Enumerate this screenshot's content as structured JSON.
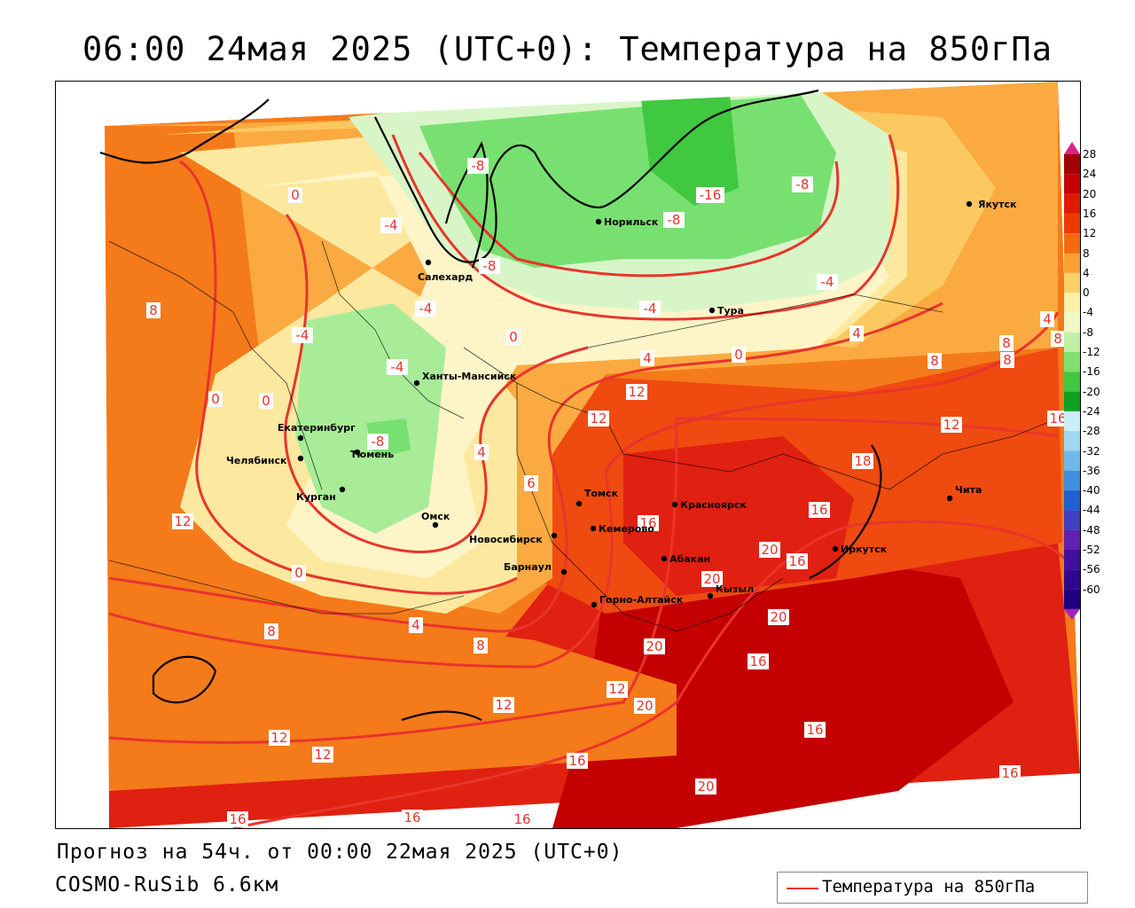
{
  "title": "06:00 24мая 2025 (UTC+0): Температура на 850гПа",
  "footer": {
    "forecast": "Прогноз на 54ч. от 00:00 22мая 2025 (UTC+0)",
    "model": "COSMO-RuSib 6.6км"
  },
  "legend": {
    "label": "Температура на 850гПа",
    "line_color": "#e8342c"
  },
  "colorbar": {
    "ticks": [
      "28",
      "24",
      "20",
      "16",
      "12",
      "8",
      "4",
      "0",
      "-4",
      "-8",
      "-12",
      "-16",
      "-20",
      "-24",
      "-28",
      "-32",
      "-36",
      "-40",
      "-44",
      "-48",
      "-52",
      "-56",
      "-60"
    ],
    "colors": [
      "#a00000",
      "#c40000",
      "#e01a00",
      "#ee3a00",
      "#f56a10",
      "#f9a030",
      "#fcd068",
      "#fdf0a8",
      "#f0f8c8",
      "#c0f0a8",
      "#80e070",
      "#40c840",
      "#10a020",
      "#c8eef8",
      "#a0d8f0",
      "#70b8e8",
      "#4090e0",
      "#2060d0",
      "#4040c0",
      "#6020b0",
      "#4010a0",
      "#300890",
      "#200080"
    ],
    "top_color": "#e0208a",
    "bottom_color": "#a020c0"
  },
  "cities": [
    {
      "name": "Якутск"
    },
    {
      "name": "Норильск"
    },
    {
      "name": "Салехард"
    },
    {
      "name": "Тура"
    },
    {
      "name": "Ханты-Мансийск"
    },
    {
      "name": "Екатеринбург"
    },
    {
      "name": "Тюмень"
    },
    {
      "name": "Челябинск"
    },
    {
      "name": "Курган"
    },
    {
      "name": "Омск"
    },
    {
      "name": "Новосибирск"
    },
    {
      "name": "Томск"
    },
    {
      "name": "Кемерово"
    },
    {
      "name": "Красноярск"
    },
    {
      "name": "Барнаул"
    },
    {
      "name": "Абакан"
    },
    {
      "name": "Горно-Алтайск"
    },
    {
      "name": "Кызыл"
    },
    {
      "name": "Иркутск"
    },
    {
      "name": "Чита"
    }
  ],
  "isolines": [
    "-8",
    "-16",
    "-8",
    "-8",
    "-4",
    "-8",
    "-4",
    "-4",
    "0",
    "-4",
    "-4",
    "-4",
    "0",
    "-8",
    "0",
    "4",
    "0",
    "8",
    "4",
    "8",
    "8",
    "12",
    "12",
    "12",
    "4",
    "6",
    "18",
    "16",
    "16",
    "20",
    "20",
    "16",
    "20",
    "20",
    "16",
    "12",
    "20",
    "12",
    "12",
    "16",
    "8",
    "4",
    "8",
    "0",
    "0",
    "12",
    "12",
    "16",
    "20",
    "16",
    "16",
    "16",
    "16",
    "16",
    "12",
    "4",
    "8",
    "8"
  ],
  "colors": {
    "isoline": "#e8342c",
    "deep_red": "#c40000",
    "red": "#e02010",
    "orange_red": "#ef4a10",
    "orange": "#f57a1a",
    "light_orange": "#faaa40",
    "yellow_orange": "#fcc860",
    "pale_yellow": "#fde8a0",
    "cream": "#fdf5c8",
    "pale_green": "#d8f5c8",
    "light_green": "#a8ec98",
    "green": "#78e070",
    "dark_green": "#40c840"
  }
}
